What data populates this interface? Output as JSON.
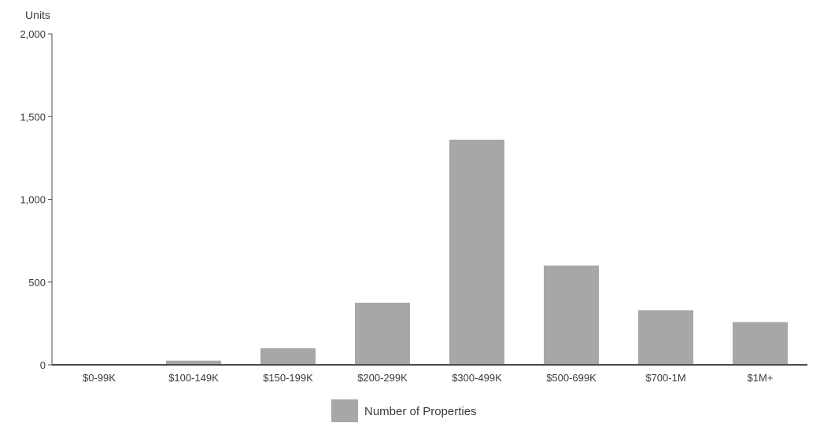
{
  "chart_data": {
    "type": "bar",
    "y_axis_title": "Units",
    "categories": [
      "$0-99K",
      "$100-149K",
      "$150-199K",
      "$200-299K",
      "$300-499K",
      "$500-699K",
      "$700-1M",
      "$1M+"
    ],
    "series": [
      {
        "name": "Number of Properties",
        "values": [
          5,
          25,
          100,
          375,
          1360,
          600,
          330,
          258
        ],
        "color": "#a7a7aa"
      }
    ],
    "ylim": [
      0,
      2000
    ],
    "yticks": [
      0,
      500,
      1000,
      1500,
      2000
    ],
    "ytick_labels": [
      "0",
      "500",
      "1,000",
      "1,500",
      "2,000"
    ],
    "grid": false,
    "legend_position": "bottom-center",
    "axis_color": "#4a4a4a"
  }
}
